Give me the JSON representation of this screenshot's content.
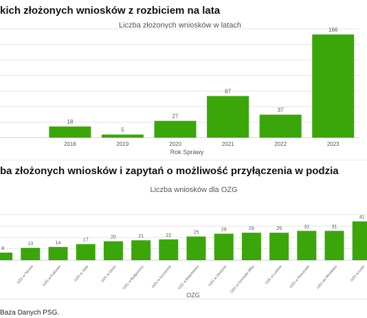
{
  "headings": {
    "section1": "kich złożonych wniosków z rozbiciem na lata",
    "section2": "ba złożonych wniosków i zapytań o możliwość przyłączenia w podzia"
  },
  "source_note": "Baza Danych PSG.",
  "colors": {
    "bar": "#3aa60a",
    "grid": "#e4e4e4",
    "text": "#555555"
  },
  "chart_data": [
    {
      "type": "bar",
      "title": "Liczba złożonych wniosków w latach",
      "xlabel": "Rok Sprawy",
      "ylabel": "",
      "categories": [
        "",
        "2018",
        "2019",
        "2020",
        "2021",
        "2022",
        "2023"
      ],
      "values": [
        null,
        18,
        5,
        27,
        67,
        37,
        166
      ],
      "data_labels": [
        "",
        "18",
        "5",
        "27",
        "67",
        "37",
        "166"
      ],
      "ylim": [
        0,
        175
      ],
      "grid": true,
      "legend": "none"
    },
    {
      "type": "bar",
      "title": "Liczba wniosków dla OZG",
      "xlabel": "OZG",
      "ylabel": "",
      "categories": [
        "",
        "OZG w Tarnów",
        "OZG w Krakowie",
        "OZG w Jaśle",
        "OZG w Opolu",
        "OZG w Bydgoszczy",
        "OZG w Szczecinie",
        "OZG w Białymstoku",
        "OZG w Olsztynie",
        "OZG w Gorzowie Wlkp",
        "OZG w Lublinie",
        "OZG w Rzeszowie",
        "OZG we Wrocławiu",
        "OZG w Łodzi",
        ""
      ],
      "values": [
        8,
        13,
        14,
        17,
        20,
        21,
        22,
        25,
        28,
        29,
        29,
        31,
        31,
        41,
        null
      ],
      "data_labels": [
        "8",
        "13",
        "14",
        "17",
        "20",
        "21",
        "22",
        "25",
        "28",
        "29",
        "29",
        "31",
        "31",
        "41",
        ""
      ],
      "ylim": [
        0,
        48
      ],
      "grid": true,
      "legend": "none"
    }
  ]
}
